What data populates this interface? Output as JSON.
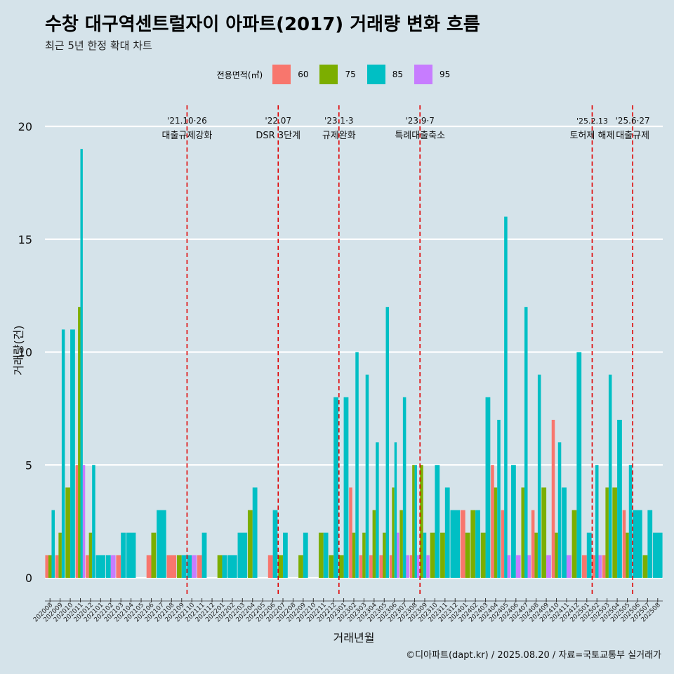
{
  "title": "수창 대구역센트럴자이 아파트(2017) 거래량 변화 흐름",
  "subtitle": "최근 5년 한정 확대 차트",
  "caption": "©디아파트(dapt.kr) / 2025.08.20 / 자료=국토교통부 실거래가",
  "legend": {
    "title": "전용면적(㎡)",
    "items": [
      {
        "label": "60",
        "color": "#F8766D"
      },
      {
        "label": "75",
        "color": "#7CAE00"
      },
      {
        "label": "85",
        "color": "#00BFC4"
      },
      {
        "label": "95",
        "color": "#C77CFF"
      }
    ]
  },
  "chart_data": {
    "type": "bar",
    "title": "수창 대구역센트럴자이 아파트(2017) 거래량 변화 흐름",
    "xlabel": "거래년월",
    "ylabel": "거래량(건)",
    "ylim": [
      0,
      20
    ],
    "yticks": [
      0,
      5,
      10,
      15,
      20
    ],
    "grid": true,
    "legend_position": "top",
    "categories": [
      "202008",
      "202009",
      "202010",
      "202011",
      "202012",
      "202101",
      "202102",
      "202103",
      "202104",
      "202105",
      "202106",
      "202107",
      "202108",
      "202109",
      "202110",
      "202111",
      "202112",
      "202201",
      "202202",
      "202203",
      "202204",
      "202205",
      "202206",
      "202207",
      "202208",
      "202209",
      "202210",
      "202211",
      "202212",
      "202301",
      "202302",
      "202303",
      "202304",
      "202305",
      "202306",
      "202307",
      "202308",
      "202309",
      "202310",
      "202311",
      "202312",
      "202401",
      "202402",
      "202403",
      "202404",
      "202405",
      "202406",
      "202407",
      "202408",
      "202409",
      "202410",
      "202411",
      "202412",
      "202501",
      "202502",
      "202503",
      "202504",
      "202505",
      "202506",
      "202507",
      "202508"
    ],
    "series": [
      {
        "name": "60",
        "color": "#F8766D",
        "values": [
          1,
          1,
          0,
          5,
          1,
          0,
          0,
          1,
          0,
          0,
          1,
          0,
          1,
          0,
          0,
          1,
          0,
          0,
          0,
          0,
          0,
          0,
          1,
          0,
          0,
          0,
          0,
          0,
          0,
          0,
          4,
          1,
          1,
          1,
          1,
          0,
          1,
          0,
          0,
          0,
          0,
          3,
          0,
          0,
          5,
          3,
          0,
          0,
          3,
          0,
          7,
          0,
          0,
          1,
          1,
          1,
          0,
          3,
          0,
          0,
          0
        ]
      },
      {
        "name": "75",
        "color": "#7CAE00",
        "values": [
          1,
          2,
          4,
          12,
          2,
          0,
          0,
          0,
          0,
          0,
          2,
          0,
          0,
          1,
          0,
          0,
          0,
          1,
          0,
          0,
          3,
          0,
          0,
          1,
          0,
          1,
          0,
          2,
          1,
          1,
          2,
          2,
          3,
          2,
          4,
          3,
          5,
          5,
          2,
          2,
          0,
          2,
          3,
          2,
          4,
          0,
          0,
          4,
          2,
          4,
          2,
          0,
          3,
          0,
          0,
          4,
          4,
          2,
          0,
          1,
          0
        ]
      },
      {
        "name": "85",
        "color": "#00BFC4",
        "values": [
          3,
          11,
          11,
          19,
          5,
          1,
          1,
          2,
          2,
          0,
          0,
          3,
          0,
          1,
          1,
          2,
          0,
          1,
          1,
          2,
          4,
          0,
          3,
          2,
          0,
          2,
          0,
          2,
          8,
          8,
          10,
          9,
          6,
          12,
          6,
          8,
          5,
          2,
          5,
          4,
          3,
          0,
          3,
          8,
          7,
          16,
          5,
          12,
          9,
          0,
          6,
          4,
          10,
          2,
          5,
          9,
          7,
          5,
          3,
          3,
          2
        ]
      },
      {
        "name": "95",
        "color": "#C77CFF",
        "values": [
          0,
          0,
          0,
          5,
          0,
          0,
          1,
          0,
          0,
          0,
          0,
          0,
          0,
          0,
          1,
          0,
          0,
          0,
          0,
          0,
          0,
          0,
          0,
          0,
          0,
          0,
          0,
          0,
          0,
          0,
          0,
          0,
          0,
          0,
          2,
          1,
          1,
          1,
          0,
          0,
          0,
          0,
          0,
          0,
          0,
          1,
          1,
          1,
          0,
          1,
          0,
          1,
          0,
          0,
          1,
          0,
          0,
          0,
          0,
          0,
          0
        ]
      }
    ],
    "annotations": [
      {
        "date": "'21.10·26",
        "text": "대출규제강화",
        "at": "202110"
      },
      {
        "date": "'22.07",
        "text": "DSR 3단계",
        "at": "202207"
      },
      {
        "date": "'23.1·3",
        "text": "규제완화",
        "at": "202301"
      },
      {
        "date": "'23.9·7",
        "text": "특례대출축소",
        "at": "202309"
      },
      {
        "date": "'25.2.13",
        "text": "토허제 해제",
        "at": "202502"
      },
      {
        "date": "'25.6·27",
        "text": "대출규제",
        "at": "202506"
      }
    ]
  }
}
